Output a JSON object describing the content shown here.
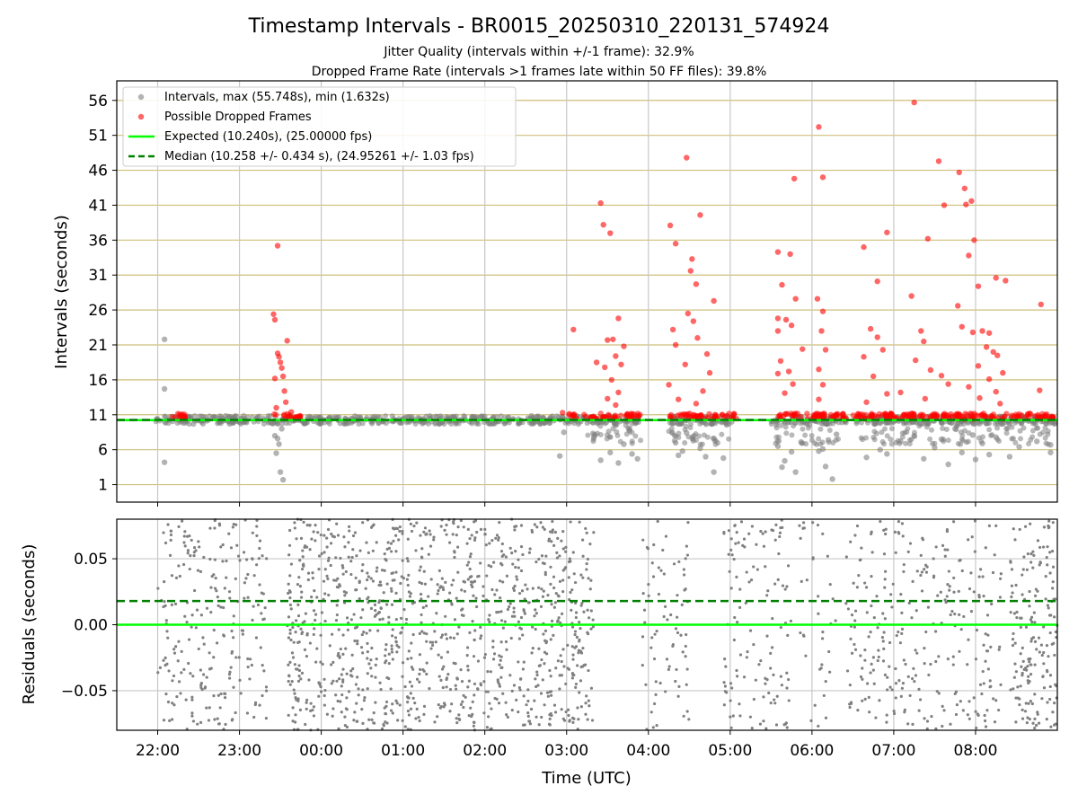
{
  "chart_data": [
    {
      "type": "scatter",
      "title": "Timestamp Intervals - BR0015_20250310_220131_574924",
      "subtitle_1": "Jitter Quality (intervals within +/-1 frame): 32.9%",
      "subtitle_2": "Dropped Frame Rate (intervals >1 frames late within 50 FF files): 39.8%",
      "ylabel": "Intervals (seconds)",
      "ylim": [
        -1.5,
        58.8
      ],
      "yticks": [
        "1",
        "6",
        "11",
        "16",
        "21",
        "26",
        "31",
        "36",
        "41",
        "46",
        "51",
        "56"
      ],
      "ytick_values": [
        1,
        6,
        11,
        16,
        21,
        26,
        31,
        36,
        41,
        46,
        51,
        56
      ],
      "xlim": [
        "21:30",
        "09:00"
      ],
      "grid": true,
      "legend_position": "upper left",
      "legend": [
        "Intervals, max (55.748s), min (1.632s)",
        "Possible Dropped Frames",
        "Expected (10.240s), (25.00000 fps)",
        "Median (10.258 +/- 0.434 s), (24.95261 +/- 1.03 fps)"
      ],
      "expected_interval": 10.24,
      "median_interval": 10.258,
      "max_interval": 55.748,
      "min_interval": 1.632,
      "series": [
        {
          "name": "Intervals, max (55.748s), min (1.632s)",
          "color": "#808080",
          "points": [
            [
              "22:05",
              21.8
            ],
            [
              "22:05",
              14.7
            ],
            [
              "22:05",
              4.2
            ],
            [
              "23:30",
              2.8
            ],
            [
              "23:32",
              1.7
            ],
            [
              "23:29",
              6.8
            ],
            [
              "23:27",
              5.5
            ],
            [
              "23:26",
              8.0
            ],
            [
              "23:31",
              9.0
            ],
            [
              "23:28",
              7.6
            ],
            [
              "02:58",
              8.5
            ],
            [
              "02:55",
              5.1
            ],
            [
              "03:20",
              7.8
            ],
            [
              "03:25",
              4.5
            ],
            [
              "03:32",
              5.6
            ],
            [
              "03:38",
              4.1
            ],
            [
              "03:42",
              6.8
            ],
            [
              "03:48",
              5.4
            ],
            [
              "03:52",
              4.7
            ],
            [
              "04:20",
              7.0
            ],
            [
              "04:22",
              5.2
            ],
            [
              "04:25",
              5.8
            ],
            [
              "04:28",
              8.4
            ],
            [
              "04:38",
              6.2
            ],
            [
              "04:42",
              5.0
            ],
            [
              "04:48",
              2.8
            ],
            [
              "04:55",
              4.8
            ],
            [
              "05:35",
              6.5
            ],
            [
              "05:38",
              3.5
            ],
            [
              "05:40",
              4.4
            ],
            [
              "05:45",
              5.7
            ],
            [
              "05:48",
              2.8
            ],
            [
              "05:52",
              7.1
            ],
            [
              "06:05",
              5.8
            ],
            [
              "06:10",
              3.6
            ],
            [
              "06:12",
              7.4
            ],
            [
              "06:15",
              1.8
            ],
            [
              "06:08",
              6.1
            ],
            [
              "06:18",
              8.2
            ],
            [
              "06:40",
              4.9
            ],
            [
              "06:50",
              6.0
            ],
            [
              "06:55",
              5.4
            ],
            [
              "07:05",
              7.2
            ],
            [
              "07:15",
              8.0
            ],
            [
              "07:22",
              4.7
            ],
            [
              "07:30",
              6.3
            ],
            [
              "07:35",
              7.5
            ],
            [
              "07:40",
              3.9
            ],
            [
              "07:50",
              5.6
            ],
            [
              "07:58",
              8.1
            ],
            [
              "08:00",
              4.6
            ],
            [
              "08:05",
              6.9
            ],
            [
              "08:10",
              5.3
            ],
            [
              "08:15",
              7.8
            ],
            [
              "08:25",
              5.0
            ],
            [
              "08:32",
              6.4
            ],
            [
              "08:45",
              7.2
            ],
            [
              "08:55",
              6.7
            ],
            [
              "08:55",
              5.6
            ],
            [
              "07:45",
              9.0
            ]
          ]
        },
        {
          "name": "Possible Dropped Frames",
          "color": "#ff0000",
          "points": [
            [
              "23:28",
              35.2
            ],
            [
              "23:25",
              25.4
            ],
            [
              "23:26",
              24.6
            ],
            [
              "23:28",
              19.8
            ],
            [
              "23:29",
              19.3
            ],
            [
              "23:30",
              18.5
            ],
            [
              "23:31",
              17.7
            ],
            [
              "23:32",
              16.5
            ],
            [
              "23:26",
              16.2
            ],
            [
              "23:33",
              14.4
            ],
            [
              "23:35",
              21.6
            ],
            [
              "23:34",
              12.8
            ],
            [
              "23:27",
              12.0
            ],
            [
              "23:38",
              11.4
            ],
            [
              "02:57",
              11.3
            ],
            [
              "03:05",
              23.2
            ],
            [
              "03:25",
              41.3
            ],
            [
              "03:27",
              38.2
            ],
            [
              "03:32",
              37.0
            ],
            [
              "03:30",
              21.7
            ],
            [
              "03:34",
              21.8
            ],
            [
              "03:38",
              24.8
            ],
            [
              "03:42",
              20.8
            ],
            [
              "03:36",
              19.4
            ],
            [
              "03:22",
              18.5
            ],
            [
              "03:40",
              18.2
            ],
            [
              "03:28",
              17.8
            ],
            [
              "03:33",
              16.0
            ],
            [
              "03:38",
              14.2
            ],
            [
              "03:30",
              13.3
            ],
            [
              "03:36",
              12.4
            ],
            [
              "04:16",
              38.1
            ],
            [
              "04:20",
              35.5
            ],
            [
              "04:28",
              47.8
            ],
            [
              "04:32",
              33.3
            ],
            [
              "04:31",
              31.6
            ],
            [
              "04:38",
              39.6
            ],
            [
              "04:35",
              29.7
            ],
            [
              "04:48",
              27.3
            ],
            [
              "04:29",
              25.5
            ],
            [
              "04:33",
              24.4
            ],
            [
              "04:18",
              23.2
            ],
            [
              "04:36",
              22.0
            ],
            [
              "04:20",
              21.0
            ],
            [
              "04:43",
              19.7
            ],
            [
              "04:27",
              18.2
            ],
            [
              "04:45",
              17.0
            ],
            [
              "04:15",
              15.3
            ],
            [
              "04:40",
              14.4
            ],
            [
              "04:22",
              13.2
            ],
            [
              "04:35",
              12.6
            ],
            [
              "05:35",
              34.3
            ],
            [
              "05:44",
              34.0
            ],
            [
              "05:47",
              44.8
            ],
            [
              "05:38",
              29.6
            ],
            [
              "05:48",
              27.6
            ],
            [
              "05:35",
              24.8
            ],
            [
              "05:41",
              24.6
            ],
            [
              "05:35",
              23.0
            ],
            [
              "05:45",
              23.8
            ],
            [
              "05:53",
              20.4
            ],
            [
              "05:37",
              18.7
            ],
            [
              "05:43",
              17.2
            ],
            [
              "05:35",
              16.9
            ],
            [
              "05:46",
              15.4
            ],
            [
              "05:40",
              14.1
            ],
            [
              "06:05",
              52.2
            ],
            [
              "06:08",
              45.0
            ],
            [
              "06:04",
              27.6
            ],
            [
              "06:08",
              25.8
            ],
            [
              "06:07",
              23.0
            ],
            [
              "06:10",
              20.3
            ],
            [
              "06:05",
              17.5
            ],
            [
              "06:08",
              15.3
            ],
            [
              "06:05",
              13.2
            ],
            [
              "06:38",
              35.0
            ],
            [
              "06:48",
              30.1
            ],
            [
              "06:55",
              37.1
            ],
            [
              "06:43",
              23.3
            ],
            [
              "06:48",
              22.1
            ],
            [
              "06:52",
              20.3
            ],
            [
              "06:38",
              19.3
            ],
            [
              "06:45",
              16.5
            ],
            [
              "06:55",
              14.0
            ],
            [
              "06:40",
              12.8
            ],
            [
              "07:15",
              55.7
            ],
            [
              "07:33",
              47.3
            ],
            [
              "07:37",
              41.0
            ],
            [
              "07:25",
              36.2
            ],
            [
              "07:13",
              28.0
            ],
            [
              "07:20",
              23.0
            ],
            [
              "07:22",
              21.5
            ],
            [
              "07:16",
              18.8
            ],
            [
              "07:27",
              17.4
            ],
            [
              "07:35",
              16.6
            ],
            [
              "07:05",
              14.2
            ],
            [
              "07:40",
              15.4
            ],
            [
              "07:23",
              13.3
            ],
            [
              "07:48",
              45.7
            ],
            [
              "07:52",
              43.4
            ],
            [
              "07:53",
              41.1
            ],
            [
              "07:57",
              41.6
            ],
            [
              "07:55",
              33.8
            ],
            [
              "07:59",
              36.0
            ],
            [
              "08:02",
              29.4
            ],
            [
              "07:47",
              26.6
            ],
            [
              "07:50",
              23.6
            ],
            [
              "07:58",
              22.8
            ],
            [
              "08:05",
              23.0
            ],
            [
              "08:10",
              22.7
            ],
            [
              "08:15",
              30.6
            ],
            [
              "08:22",
              30.2
            ],
            [
              "08:08",
              20.7
            ],
            [
              "08:13",
              20.0
            ],
            [
              "08:16",
              19.5
            ],
            [
              "08:02",
              18.0
            ],
            [
              "08:20",
              17.0
            ],
            [
              "08:10",
              16.1
            ],
            [
              "07:55",
              15.0
            ],
            [
              "08:15",
              14.3
            ],
            [
              "08:03",
              13.4
            ],
            [
              "08:18",
              12.6
            ],
            [
              "08:48",
              26.8
            ],
            [
              "08:47",
              14.5
            ]
          ]
        },
        {
          "name": "Expected (10.240s), (25.00000 fps)",
          "color": "#00ff00",
          "y": 10.24
        },
        {
          "name": "Median (10.258 +/- 0.434 s), (24.95261 +/- 1.03 fps)",
          "color": "#008000",
          "y": 10.258
        }
      ]
    },
    {
      "type": "scatter",
      "xlabel": "Time (UTC)",
      "ylabel": "Residuals (seconds)",
      "ylim": [
        -0.08,
        0.08
      ],
      "yticks": [
        "−0.05",
        "0.00",
        "0.05"
      ],
      "ytick_values": [
        -0.05,
        0.0,
        0.05
      ],
      "xlim": [
        "21:30",
        "09:00"
      ],
      "xticks": [
        "22:00",
        "23:00",
        "00:00",
        "01:00",
        "02:00",
        "03:00",
        "04:00",
        "05:00",
        "06:00",
        "07:00",
        "08:00"
      ],
      "grid": true,
      "series": [
        {
          "name": "",
          "color": "#808080",
          "description": "dense scatter of residuals spanning -0.08 to 0.08 with gaps"
        },
        {
          "name": "",
          "color": "#008000",
          "y": 0.018
        },
        {
          "name": "",
          "color": "#00ff00",
          "y": 0.0
        }
      ]
    }
  ]
}
